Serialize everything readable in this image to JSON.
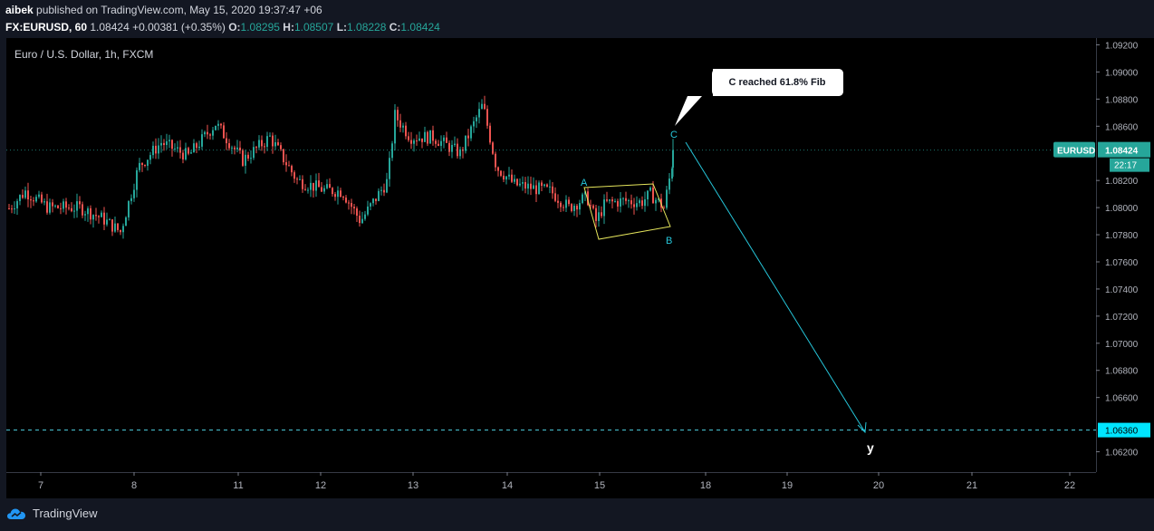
{
  "header": {
    "user": "aibek",
    "published_text": "published on TradingView.com, May 15, 2020 19:37:47 +06",
    "symbol": "FX:EURUSD, 60",
    "last": "1.08424",
    "change": "+0.00381 (+0.35%)",
    "o_label": "O:",
    "o_value": "1.08295",
    "h_label": "H:",
    "h_value": "1.08507",
    "l_label": "L:",
    "l_value": "1.08228",
    "c_label": "C:",
    "c_value": "1.08424"
  },
  "chart_title": "Euro / U.S. Dollar, 1h, FXCM",
  "price_tag": {
    "symbol": "EURUSD",
    "price": "1.08424",
    "countdown": "22:17"
  },
  "target_tag": "1.06360",
  "callout": "C reached 61.8% Fib",
  "wave_labels": {
    "a": "A",
    "b": "B",
    "c": "C",
    "y": "y"
  },
  "footer": {
    "brand": "TradingView"
  },
  "colors": {
    "background": "#131722",
    "up": "#26a69a",
    "down": "#ef5350",
    "wedge": "#e6e65c",
    "arrow": "#26c6da",
    "target_line": "#4dd0e1",
    "price_tag": "#26a69a"
  },
  "chart_data": {
    "type": "candlestick",
    "title": "Euro / U.S. Dollar, 1h, FXCM",
    "y_ticks": [
      "1.09200",
      "1.09000",
      "1.08800",
      "1.08600",
      "1.08200",
      "1.08000",
      "1.07800",
      "1.07600",
      "1.07400",
      "1.07200",
      "1.07000",
      "1.06800",
      "1.06600",
      "1.06200"
    ],
    "x_ticks": [
      "7",
      "8",
      "11",
      "12",
      "13",
      "14",
      "15",
      "18",
      "19",
      "20",
      "21",
      "22"
    ],
    "ylim": [
      1.0605,
      1.0925
    ],
    "last_price": 1.08424,
    "target_level": 1.0636,
    "ohlc_anchors": [
      {
        "day": "7",
        "close": 1.0799
      },
      {
        "day": "8",
        "close": 1.0802
      },
      {
        "day": "8",
        "close": 1.0842
      },
      {
        "day": "11",
        "close": 1.0872
      },
      {
        "day": "11",
        "close": 1.083
      },
      {
        "day": "12",
        "close": 1.0813
      },
      {
        "day": "12",
        "close": 1.08
      },
      {
        "day": "13",
        "close": 1.0875
      },
      {
        "day": "13",
        "close": 1.0852
      },
      {
        "day": "14",
        "close": 1.0875
      },
      {
        "day": "14",
        "close": 1.082
      },
      {
        "day": "15",
        "close": 1.079
      },
      {
        "day": "15",
        "close": 1.081
      },
      {
        "day": "15",
        "close": 1.0842
      }
    ],
    "annotations": [
      "A",
      "B",
      "C",
      "y",
      "C reached 61.8% Fib"
    ]
  }
}
